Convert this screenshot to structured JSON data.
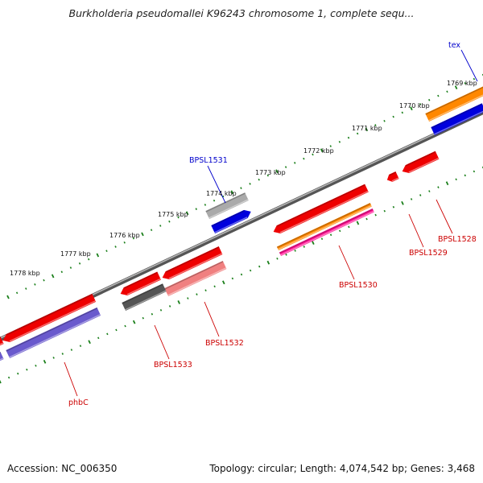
{
  "title": "Burkholderia pseudomallei K96243 chromosome 1, complete sequ...",
  "footer": {
    "accession": "Accession: NC_006350",
    "summary": "Topology: circular; Length: 4,074,542 bp; Genes: 3,468"
  },
  "ticks": [
    "1769 kbp",
    "1770 kbp",
    "1771 kbp",
    "1772 kbp",
    "1773 kbp",
    "1774 kbp",
    "1775 kbp",
    "1776 kbp",
    "1777 kbp",
    "1778 kbp"
  ],
  "genes": [
    {
      "name": "tex",
      "strand": "forward",
      "color": "#0000cc"
    },
    {
      "name": "BPSL1531",
      "strand": "forward",
      "color": "#0000cc"
    },
    {
      "name": "BPSL1528",
      "strand": "reverse",
      "color": "#cc0000"
    },
    {
      "name": "BPSL1529",
      "strand": "reverse",
      "color": "#cc0000"
    },
    {
      "name": "BPSL1530",
      "strand": "reverse",
      "color": "#cc0000"
    },
    {
      "name": "BPSL1532",
      "strand": "reverse",
      "color": "#cc0000"
    },
    {
      "name": "BPSL1533",
      "strand": "reverse",
      "color": "#cc0000"
    },
    {
      "name": "phbC",
      "strand": "reverse",
      "color": "#cc0000"
    }
  ],
  "feature_colors": {
    "gene_red": "#ee0000",
    "orange": "#ff8800",
    "blue": "#0000dd",
    "slate_purple": "#6a5acd",
    "gray": "#aaaaaa",
    "dark_gray": "#555555",
    "pink": "#ff1493",
    "salmon": "#f08080",
    "backbone": "#777777",
    "tick_green": "#1a7f1a"
  }
}
